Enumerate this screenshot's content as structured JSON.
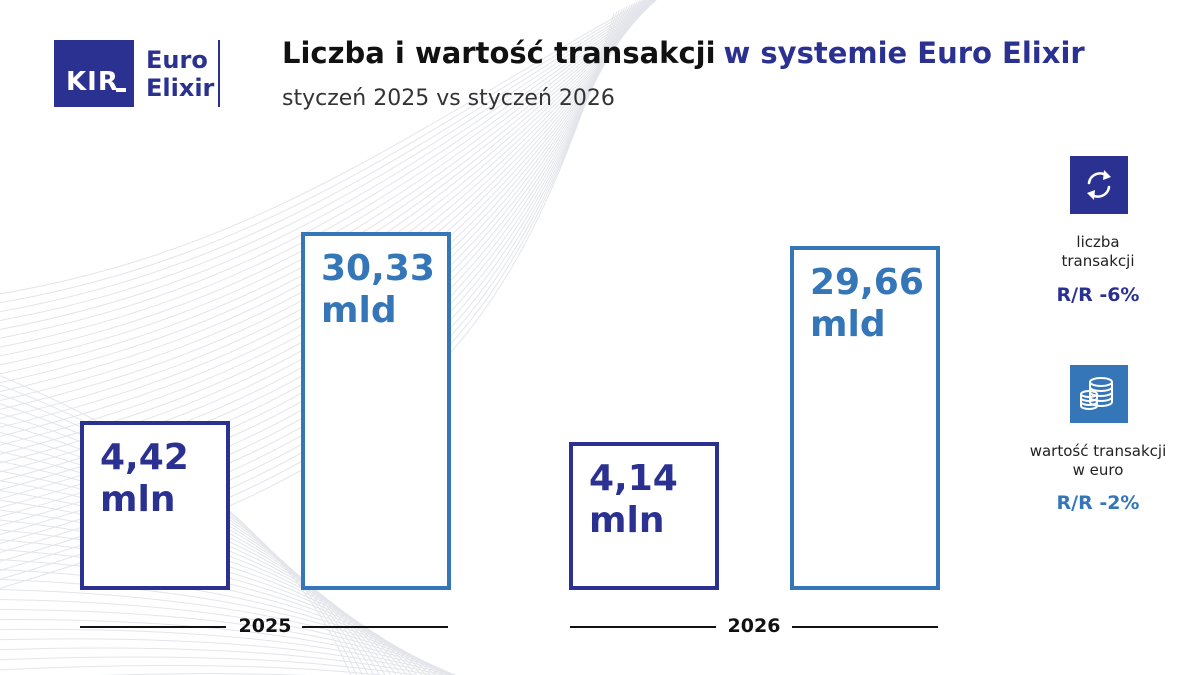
{
  "colors": {
    "navy": "#2b3191",
    "blue": "#3576b8",
    "line": "#111111"
  },
  "logo": {
    "mark": "KIR",
    "word1": "Euro",
    "word2": "Elixir"
  },
  "header": {
    "title_main": "Liczba i wartość transakcji",
    "title_accent": "w systemie Euro Elixir",
    "subtitle": "styczeń 2025 vs styczeń 2026"
  },
  "chart_data": {
    "type": "bar",
    "categories": [
      "2025",
      "2026"
    ],
    "series": [
      {
        "values": [
          4.42,
          4.14
        ],
        "labels": [
          [
            "4,42",
            "mln"
          ],
          [
            "4,14",
            "mln"
          ]
        ],
        "color": "#2b3191"
      },
      {
        "values": [
          30.33,
          29.66
        ],
        "labels": [
          [
            "30,33",
            "mld"
          ],
          [
            "29,66",
            "mld"
          ]
        ],
        "color": "#3576b8"
      }
    ]
  },
  "sidebar": {
    "count": {
      "icon": "arrows-cycle-icon",
      "label_line1": "liczba",
      "label_line2": "transakcji",
      "change": "R/R -6%"
    },
    "value": {
      "icon": "coins-stack-icon",
      "label_line1": "wartość transakcji",
      "label_line2": "w euro",
      "change": "R/R -2%"
    }
  }
}
